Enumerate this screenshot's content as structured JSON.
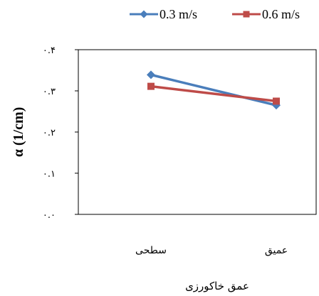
{
  "chart_data": {
    "type": "line",
    "categories": [
      "سطحی",
      "عمیق"
    ],
    "series": [
      {
        "name": "0.3 m/s",
        "values": [
          0.339,
          0.265
        ],
        "color": "#4A7EBB",
        "marker": "diamond"
      },
      {
        "name": "0.6 m/s",
        "values": [
          0.311,
          0.275
        ],
        "color": "#BE4B48",
        "marker": "square"
      }
    ],
    "ylim": [
      0,
      0.4
    ],
    "yticks": [
      "۰.۰",
      "۰.۱",
      "۰.۲",
      "۰.۳",
      "۰.۴"
    ],
    "xlabel": "عمق خاکورزی",
    "ylabel": "α (1/cm)",
    "legend_position": "top",
    "grid": false
  }
}
